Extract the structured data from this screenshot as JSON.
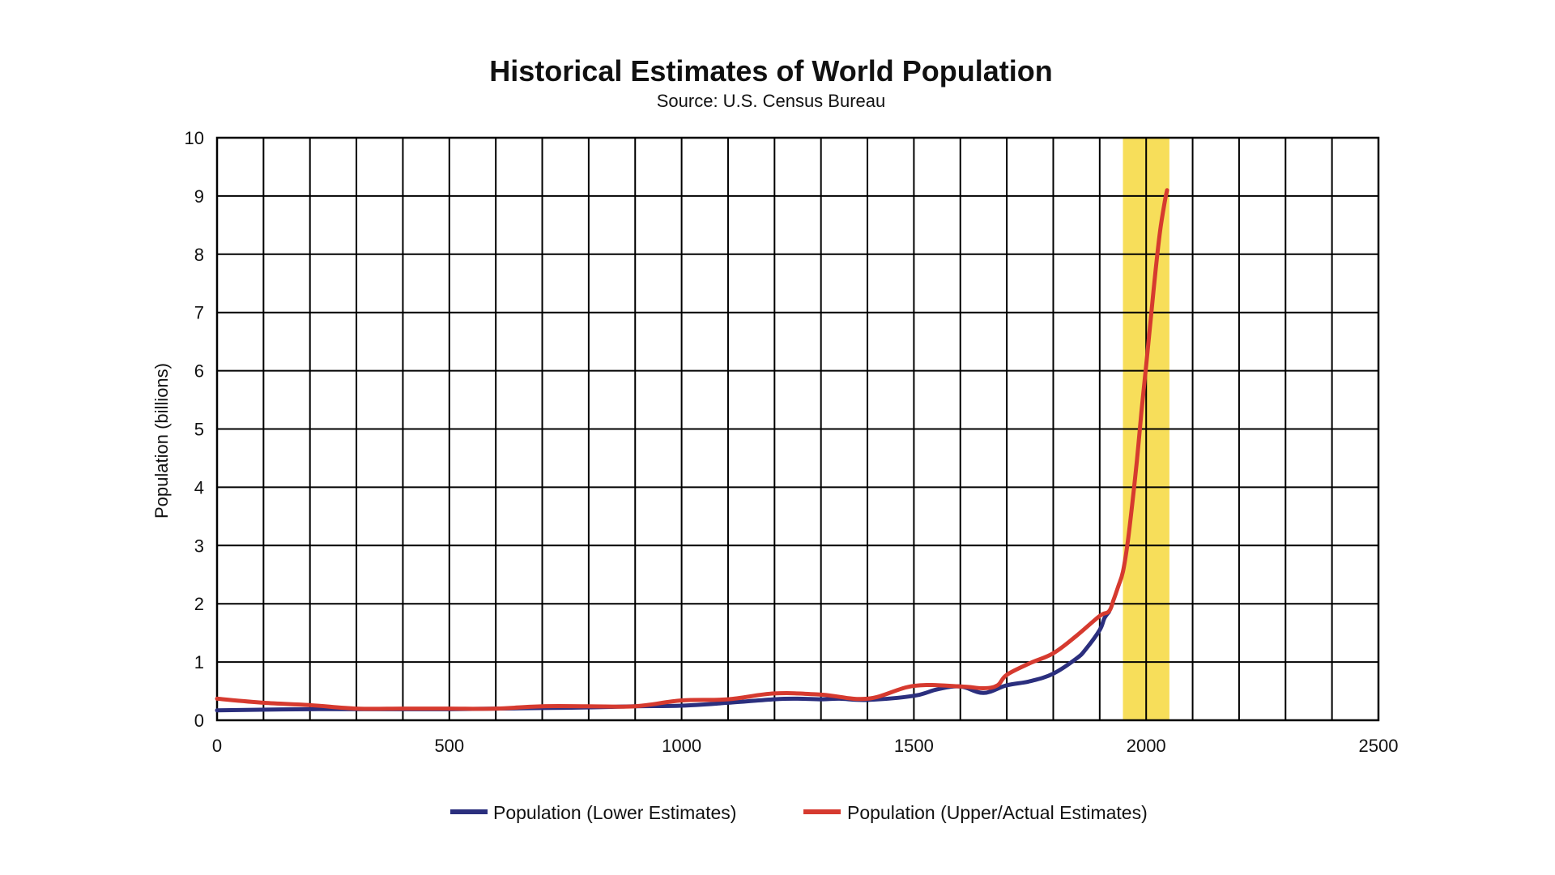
{
  "chart_data": {
    "type": "line",
    "title": "Historical Estimates of World Population",
    "subtitle": "Source: U.S. Census Bureau",
    "xlabel": "",
    "ylabel": "Population (billions)",
    "xlim": [
      0,
      2500
    ],
    "ylim": [
      0,
      10
    ],
    "x_ticks": [
      0,
      500,
      1000,
      1500,
      2000,
      2500
    ],
    "y_ticks": [
      0,
      1,
      2,
      3,
      4,
      5,
      6,
      7,
      8,
      9,
      10
    ],
    "x_grid_step": 100,
    "y_grid_step": 1,
    "grid": true,
    "legend_position": "bottom",
    "highlight_band": {
      "x_range": [
        1950,
        2050
      ],
      "color": "#F7DE5A"
    },
    "series": [
      {
        "name": "Population (Lower Estimates)",
        "color": "#2B2F7E",
        "points": [
          [
            0,
            0.17
          ],
          [
            200,
            0.19
          ],
          [
            400,
            0.19
          ],
          [
            500,
            0.19
          ],
          [
            600,
            0.2
          ],
          [
            700,
            0.21
          ],
          [
            800,
            0.22
          ],
          [
            900,
            0.24
          ],
          [
            1000,
            0.25
          ],
          [
            1100,
            0.3
          ],
          [
            1200,
            0.36
          ],
          [
            1250,
            0.37
          ],
          [
            1300,
            0.36
          ],
          [
            1340,
            0.37
          ],
          [
            1400,
            0.35
          ],
          [
            1500,
            0.42
          ],
          [
            1550,
            0.53
          ],
          [
            1600,
            0.58
          ],
          [
            1650,
            0.47
          ],
          [
            1700,
            0.6
          ],
          [
            1750,
            0.67
          ],
          [
            1800,
            0.8
          ],
          [
            1850,
            1.06
          ],
          [
            1870,
            1.22
          ],
          [
            1900,
            1.55
          ],
          [
            1910,
            1.75
          ],
          [
            1920,
            1.86
          ]
        ]
      },
      {
        "name": "Population (Upper/Actual Estimates)",
        "color": "#D63A2F",
        "points": [
          [
            0,
            0.37
          ],
          [
            100,
            0.3
          ],
          [
            200,
            0.26
          ],
          [
            300,
            0.2
          ],
          [
            400,
            0.2
          ],
          [
            500,
            0.2
          ],
          [
            600,
            0.2
          ],
          [
            700,
            0.24
          ],
          [
            800,
            0.24
          ],
          [
            900,
            0.24
          ],
          [
            1000,
            0.34
          ],
          [
            1100,
            0.36
          ],
          [
            1200,
            0.46
          ],
          [
            1300,
            0.44
          ],
          [
            1400,
            0.37
          ],
          [
            1500,
            0.59
          ],
          [
            1600,
            0.58
          ],
          [
            1650,
            0.55
          ],
          [
            1680,
            0.6
          ],
          [
            1700,
            0.78
          ],
          [
            1750,
            0.98
          ],
          [
            1800,
            1.15
          ],
          [
            1850,
            1.45
          ],
          [
            1900,
            1.79
          ],
          [
            1920,
            1.87
          ],
          [
            1930,
            2.07
          ],
          [
            1940,
            2.3
          ],
          [
            1950,
            2.55
          ],
          [
            1960,
            3.04
          ],
          [
            1970,
            3.71
          ],
          [
            1980,
            4.45
          ],
          [
            1990,
            5.31
          ],
          [
            2000,
            6.09
          ],
          [
            2010,
            6.9
          ],
          [
            2020,
            7.7
          ],
          [
            2030,
            8.4
          ],
          [
            2040,
            8.9
          ],
          [
            2045,
            9.1
          ]
        ]
      }
    ]
  }
}
